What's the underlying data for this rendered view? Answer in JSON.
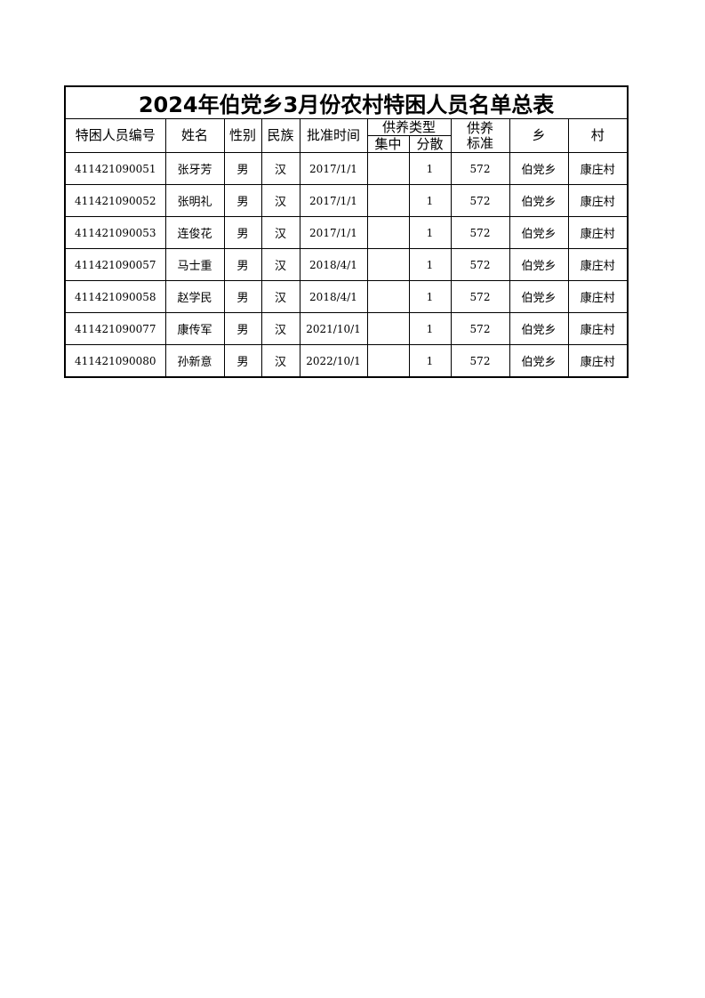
{
  "title": "2024年伯党乡3月份农村特困人员名单总表",
  "headers": {
    "id": "特困人员编号",
    "name": "姓名",
    "gender": "性别",
    "ethnicity": "民族",
    "approval_date": "批准时间",
    "support_type": "供养类型",
    "centralized": "集中",
    "dispersed": "分散",
    "support_standard": "供养\n标准",
    "township": "乡",
    "village": "村"
  },
  "rows": [
    {
      "id": "411421090051",
      "name": "张牙芳",
      "gender": "男",
      "ethnicity": "汉",
      "date": "2017/1/1",
      "centralized": "",
      "dispersed": "1",
      "standard": "572",
      "township": "伯党乡",
      "village": "康庄村"
    },
    {
      "id": "411421090052",
      "name": "张明礼",
      "gender": "男",
      "ethnicity": "汉",
      "date": "2017/1/1",
      "centralized": "",
      "dispersed": "1",
      "standard": "572",
      "township": "伯党乡",
      "village": "康庄村"
    },
    {
      "id": "411421090053",
      "name": "连俊花",
      "gender": "男",
      "ethnicity": "汉",
      "date": "2017/1/1",
      "centralized": "",
      "dispersed": "1",
      "standard": "572",
      "township": "伯党乡",
      "village": "康庄村"
    },
    {
      "id": "411421090057",
      "name": "马士重",
      "gender": "男",
      "ethnicity": "汉",
      "date": "2018/4/1",
      "centralized": "",
      "dispersed": "1",
      "standard": "572",
      "township": "伯党乡",
      "village": "康庄村"
    },
    {
      "id": "411421090058",
      "name": "赵学民",
      "gender": "男",
      "ethnicity": "汉",
      "date": "2018/4/1",
      "centralized": "",
      "dispersed": "1",
      "standard": "572",
      "township": "伯党乡",
      "village": "康庄村"
    },
    {
      "id": "411421090077",
      "name": "康传军",
      "gender": "男",
      "ethnicity": "汉",
      "date": "2021/10/1",
      "centralized": "",
      "dispersed": "1",
      "standard": "572",
      "township": "伯党乡",
      "village": "康庄村"
    },
    {
      "id": "411421090080",
      "name": "孙新意",
      "gender": "男",
      "ethnicity": "汉",
      "date": "2022/10/1",
      "centralized": "",
      "dispersed": "1",
      "standard": "572",
      "township": "伯党乡",
      "village": "康庄村"
    }
  ]
}
